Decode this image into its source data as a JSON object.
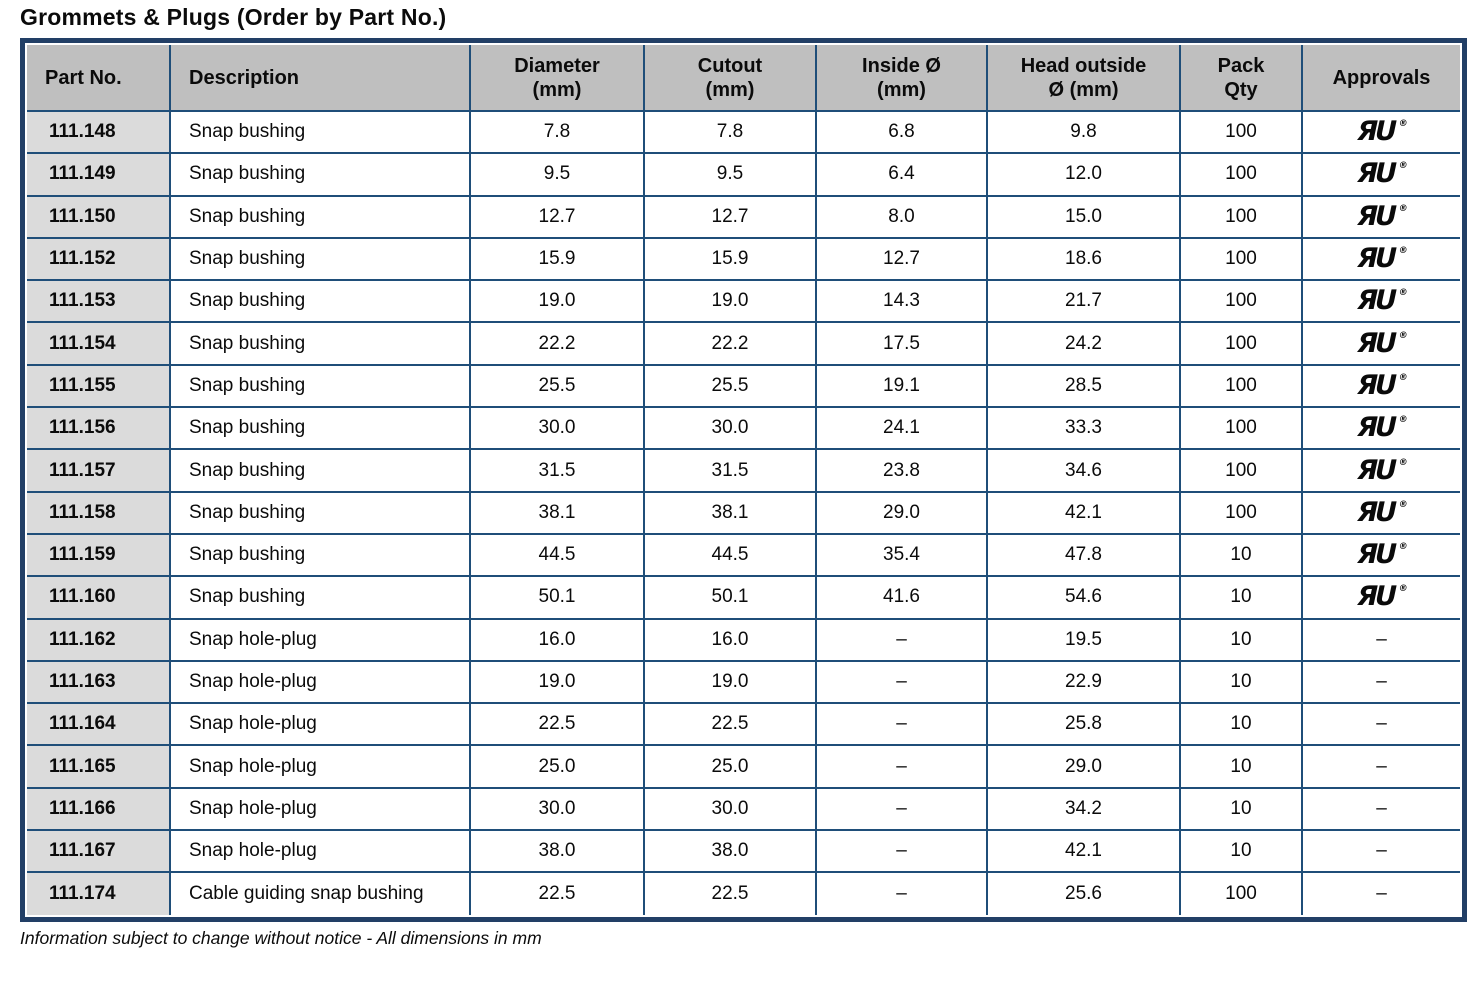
{
  "title": "Grommets & Plugs (Order by Part No.)",
  "footer": "Information subject to change without notice - All dimensions in mm",
  "colors": {
    "frame_border": "#223f66",
    "grid_lines": "#1f4e79",
    "header_bg": "#bfbfbf",
    "part_col_bg": "#dbdbdb",
    "text": "#0b0b0b"
  },
  "icons": {
    "ul_mark": {
      "name": "ul-recognized-icon",
      "glyph": "ЯU",
      "registered": "®"
    },
    "dash": "–"
  },
  "table": {
    "columns": [
      {
        "key": "part",
        "label": "Part No."
      },
      {
        "key": "desc",
        "label": "Description"
      },
      {
        "key": "diameter",
        "label": "Diameter\n(mm)"
      },
      {
        "key": "cutout",
        "label": "Cutout\n(mm)"
      },
      {
        "key": "inside",
        "label": "Inside Ø\n(mm)"
      },
      {
        "key": "head",
        "label": "Head outside\nØ (mm)"
      },
      {
        "key": "pack",
        "label": "Pack\nQty"
      },
      {
        "key": "approvals",
        "label": "Approvals"
      }
    ],
    "rows": [
      {
        "part": "111.148",
        "desc": "Snap bushing",
        "diameter": "7.8",
        "cutout": "7.8",
        "inside": "6.8",
        "head": "9.8",
        "pack": "100",
        "approvals": "UL"
      },
      {
        "part": "111.149",
        "desc": "Snap bushing",
        "diameter": "9.5",
        "cutout": "9.5",
        "inside": "6.4",
        "head": "12.0",
        "pack": "100",
        "approvals": "UL"
      },
      {
        "part": "111.150",
        "desc": "Snap bushing",
        "diameter": "12.7",
        "cutout": "12.7",
        "inside": "8.0",
        "head": "15.0",
        "pack": "100",
        "approvals": "UL"
      },
      {
        "part": "111.152",
        "desc": "Snap bushing",
        "diameter": "15.9",
        "cutout": "15.9",
        "inside": "12.7",
        "head": "18.6",
        "pack": "100",
        "approvals": "UL"
      },
      {
        "part": "111.153",
        "desc": "Snap bushing",
        "diameter": "19.0",
        "cutout": "19.0",
        "inside": "14.3",
        "head": "21.7",
        "pack": "100",
        "approvals": "UL"
      },
      {
        "part": "111.154",
        "desc": "Snap bushing",
        "diameter": "22.2",
        "cutout": "22.2",
        "inside": "17.5",
        "head": "24.2",
        "pack": "100",
        "approvals": "UL"
      },
      {
        "part": "111.155",
        "desc": "Snap bushing",
        "diameter": "25.5",
        "cutout": "25.5",
        "inside": "19.1",
        "head": "28.5",
        "pack": "100",
        "approvals": "UL"
      },
      {
        "part": "111.156",
        "desc": "Snap bushing",
        "diameter": "30.0",
        "cutout": "30.0",
        "inside": "24.1",
        "head": "33.3",
        "pack": "100",
        "approvals": "UL"
      },
      {
        "part": "111.157",
        "desc": "Snap bushing",
        "diameter": "31.5",
        "cutout": "31.5",
        "inside": "23.8",
        "head": "34.6",
        "pack": "100",
        "approvals": "UL"
      },
      {
        "part": "111.158",
        "desc": "Snap bushing",
        "diameter": "38.1",
        "cutout": "38.1",
        "inside": "29.0",
        "head": "42.1",
        "pack": "100",
        "approvals": "UL"
      },
      {
        "part": "111.159",
        "desc": "Snap bushing",
        "diameter": "44.5",
        "cutout": "44.5",
        "inside": "35.4",
        "head": "47.8",
        "pack": "10",
        "approvals": "UL"
      },
      {
        "part": "111.160",
        "desc": "Snap bushing",
        "diameter": "50.1",
        "cutout": "50.1",
        "inside": "41.6",
        "head": "54.6",
        "pack": "10",
        "approvals": "UL"
      },
      {
        "part": "111.162",
        "desc": "Snap hole-plug",
        "diameter": "16.0",
        "cutout": "16.0",
        "inside": "–",
        "head": "19.5",
        "pack": "10",
        "approvals": "–"
      },
      {
        "part": "111.163",
        "desc": "Snap hole-plug",
        "diameter": "19.0",
        "cutout": "19.0",
        "inside": "–",
        "head": "22.9",
        "pack": "10",
        "approvals": "–"
      },
      {
        "part": "111.164",
        "desc": "Snap hole-plug",
        "diameter": "22.5",
        "cutout": "22.5",
        "inside": "–",
        "head": "25.8",
        "pack": "10",
        "approvals": "–"
      },
      {
        "part": "111.165",
        "desc": "Snap hole-plug",
        "diameter": "25.0",
        "cutout": "25.0",
        "inside": "–",
        "head": "29.0",
        "pack": "10",
        "approvals": "–"
      },
      {
        "part": "111.166",
        "desc": "Snap hole-plug",
        "diameter": "30.0",
        "cutout": "30.0",
        "inside": "–",
        "head": "34.2",
        "pack": "10",
        "approvals": "–"
      },
      {
        "part": "111.167",
        "desc": "Snap hole-plug",
        "diameter": "38.0",
        "cutout": "38.0",
        "inside": "–",
        "head": "42.1",
        "pack": "10",
        "approvals": "–"
      },
      {
        "part": "111.174",
        "desc": "Cable guiding snap bushing",
        "diameter": "22.5",
        "cutout": "22.5",
        "inside": "–",
        "head": "25.6",
        "pack": "100",
        "approvals": "–"
      }
    ]
  }
}
